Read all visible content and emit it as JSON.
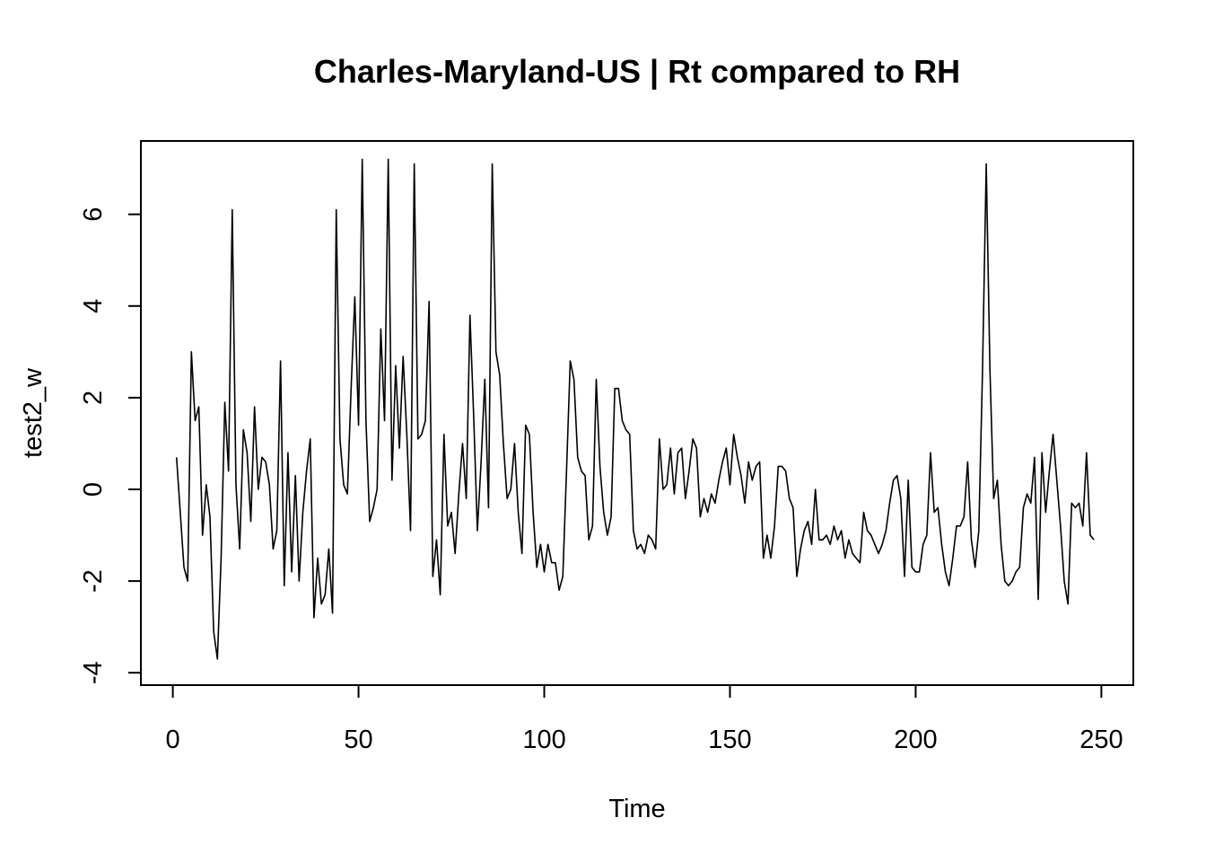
{
  "chart_data": {
    "type": "line",
    "title": "Charles-Maryland-US | Rt compared to RH",
    "xlabel": "Time",
    "ylabel": "test2_w",
    "xlim": [
      -8.6,
      258.6
    ],
    "ylim": [
      -4.27,
      7.6
    ],
    "x_ticks": [
      0,
      50,
      100,
      150,
      200,
      250
    ],
    "y_ticks": [
      -4,
      -2,
      0,
      2,
      4,
      6
    ],
    "grid": false,
    "legend": "none",
    "line_color": "#000000",
    "series": [
      {
        "x_start": 1,
        "values": [
          0.7,
          -0.5,
          -1.7,
          -2.0,
          3.0,
          1.5,
          1.8,
          -1.0,
          0.1,
          -0.6,
          -3.1,
          -3.7,
          -1.5,
          1.9,
          0.4,
          6.1,
          0.1,
          -1.3,
          1.3,
          0.8,
          -0.7,
          1.8,
          0.0,
          0.7,
          0.6,
          0.1,
          -1.3,
          -0.9,
          2.8,
          -2.1,
          0.8,
          -1.8,
          0.3,
          -2.0,
          -0.5,
          0.4,
          1.1,
          -2.8,
          -1.5,
          -2.5,
          -2.3,
          -1.3,
          -2.7,
          6.1,
          1.1,
          0.1,
          -0.1,
          2.2,
          4.2,
          1.4,
          7.2,
          1.5,
          -0.7,
          -0.4,
          0.0,
          3.5,
          1.5,
          7.2,
          0.2,
          2.7,
          0.9,
          2.9,
          1.2,
          -0.9,
          7.1,
          1.1,
          1.2,
          1.5,
          4.1,
          -1.9,
          -1.1,
          -2.3,
          1.2,
          -0.8,
          -0.5,
          -1.4,
          -0.1,
          1.0,
          -0.2,
          3.8,
          1.6,
          -0.9,
          0.6,
          2.4,
          -0.4,
          7.1,
          3.0,
          2.5,
          1.0,
          -0.2,
          0.0,
          1.0,
          -0.5,
          -1.4,
          1.4,
          1.2,
          -0.5,
          -1.7,
          -1.2,
          -1.8,
          -1.2,
          -1.6,
          -1.6,
          -2.2,
          -1.9,
          0.4,
          2.8,
          2.4,
          0.7,
          0.4,
          0.3,
          -1.1,
          -0.8,
          2.4,
          0.5,
          -0.5,
          -1.0,
          -0.6,
          2.2,
          2.2,
          1.5,
          1.3,
          1.2,
          -0.9,
          -1.3,
          -1.2,
          -1.4,
          -1.0,
          -1.1,
          -1.3,
          1.1,
          0.0,
          0.1,
          0.9,
          -0.1,
          0.8,
          0.9,
          -0.2,
          0.4,
          1.1,
          0.9,
          -0.6,
          -0.2,
          -0.5,
          -0.1,
          -0.3,
          0.2,
          0.6,
          0.9,
          0.1,
          1.2,
          0.7,
          0.3,
          -0.3,
          0.6,
          0.2,
          0.5,
          0.6,
          -1.5,
          -1.0,
          -1.5,
          -0.8,
          0.5,
          0.5,
          0.4,
          -0.2,
          -0.4,
          -1.9,
          -1.3,
          -0.9,
          -0.7,
          -1.2,
          0.0,
          -1.1,
          -1.1,
          -1.0,
          -1.2,
          -0.8,
          -1.1,
          -0.9,
          -1.5,
          -1.1,
          -1.4,
          -1.5,
          -1.6,
          -0.5,
          -0.9,
          -1.0,
          -1.2,
          -1.4,
          -1.2,
          -0.9,
          -0.3,
          0.2,
          0.3,
          -0.2,
          -1.9,
          0.2,
          -1.7,
          -1.8,
          -1.8,
          -1.2,
          -1.0,
          0.8,
          -0.5,
          -0.4,
          -1.2,
          -1.8,
          -2.1,
          -1.5,
          -0.8,
          -0.8,
          -0.6,
          0.6,
          -1.1,
          -1.7,
          -0.9,
          2.6,
          7.1,
          2.6,
          -0.2,
          0.2,
          -1.2,
          -2.0,
          -2.1,
          -2.0,
          -1.8,
          -1.7,
          -0.4,
          -0.1,
          -0.3,
          0.7,
          -2.4,
          0.8,
          -0.5,
          0.4,
          1.2,
          0.2,
          -0.8,
          -2.0,
          -2.5,
          -0.3,
          -0.4,
          -0.3,
          -0.8,
          0.8,
          -1.0,
          -1.1
        ]
      }
    ]
  }
}
